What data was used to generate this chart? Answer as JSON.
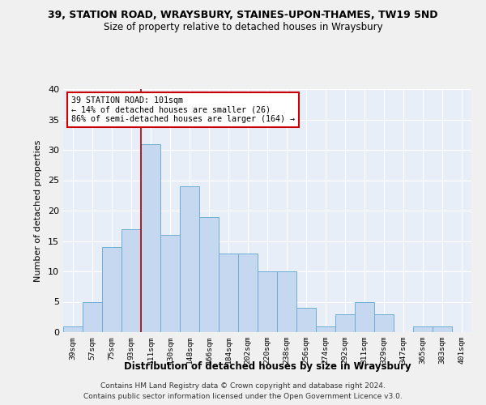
{
  "title1": "39, STATION ROAD, WRAYSBURY, STAINES-UPON-THAMES, TW19 5ND",
  "title2": "Size of property relative to detached houses in Wraysbury",
  "xlabel": "Distribution of detached houses by size in Wraysbury",
  "ylabel": "Number of detached properties",
  "categories": [
    "39sqm",
    "57sqm",
    "75sqm",
    "93sqm",
    "111sqm",
    "130sqm",
    "148sqm",
    "166sqm",
    "184sqm",
    "202sqm",
    "220sqm",
    "238sqm",
    "256sqm",
    "274sqm",
    "292sqm",
    "311sqm",
    "329sqm",
    "347sqm",
    "365sqm",
    "383sqm",
    "401sqm"
  ],
  "values": [
    1,
    5,
    14,
    17,
    31,
    16,
    24,
    19,
    13,
    13,
    10,
    10,
    4,
    1,
    3,
    5,
    3,
    0,
    1,
    1,
    0
  ],
  "bar_color": "#c5d8f0",
  "bar_edge_color": "#6baed6",
  "vline_x": 3.5,
  "annotation_line1": "39 STATION ROAD: 101sqm",
  "annotation_line2": "← 14% of detached houses are smaller (26)",
  "annotation_line3": "86% of semi-detached houses are larger (164) →",
  "annotation_box_color": "#ffffff",
  "annotation_box_edge": "#cc0000",
  "ylim": [
    0,
    40
  ],
  "yticks": [
    0,
    5,
    10,
    15,
    20,
    25,
    30,
    35,
    40
  ],
  "footnote1": "Contains HM Land Registry data © Crown copyright and database right 2024.",
  "footnote2": "Contains public sector information licensed under the Open Government Licence v3.0.",
  "bg_color": "#e8eef8",
  "grid_color": "#ffffff",
  "vline_color": "#aa0000",
  "fig_bg_color": "#f0f0f0"
}
